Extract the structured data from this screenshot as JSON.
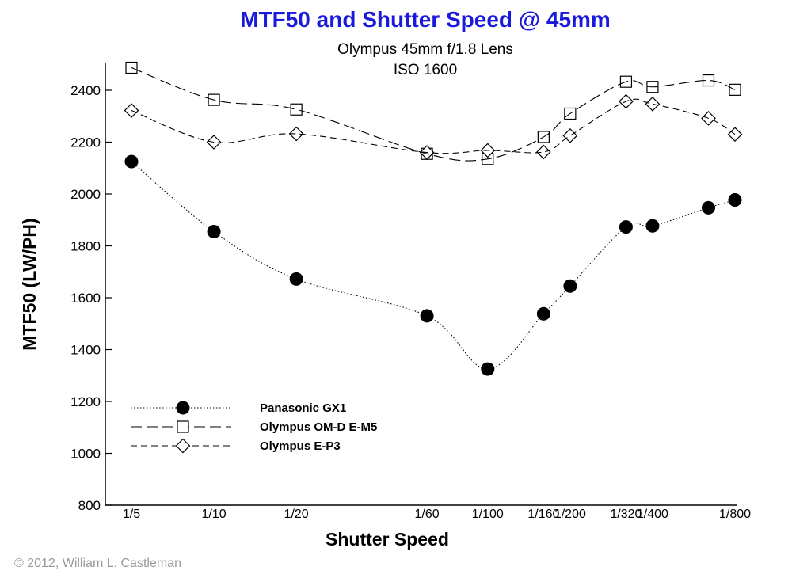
{
  "chart_data": {
    "type": "line",
    "title": "MTF50 and Shutter Speed @ 45mm",
    "subtitle_lines": [
      "Olympus 45mm f/1.8 Lens",
      "ISO 1600"
    ],
    "xlabel": "Shutter Speed",
    "ylabel": "MTF50  (LW/PH)",
    "ylim": [
      800,
      2500
    ],
    "yticks": [
      800,
      1000,
      1200,
      1400,
      1600,
      1800,
      2000,
      2200,
      2400
    ],
    "x_scale": "log of 1/seconds",
    "xticks": [
      {
        "label": "1/5",
        "value": 5
      },
      {
        "label": "1/10",
        "value": 10
      },
      {
        "label": "1/20",
        "value": 20
      },
      {
        "label": "1/60",
        "value": 60
      },
      {
        "label": "1/100",
        "value": 100
      },
      {
        "label": "1/160",
        "value": 160
      },
      {
        "label": "1/200",
        "value": 200
      },
      {
        "label": "1/320",
        "value": 320
      },
      {
        "label": "1/400",
        "value": 400
      },
      {
        "label": "1/800",
        "value": 800
      }
    ],
    "grid": false,
    "legend_position": "bottom-left",
    "series": [
      {
        "name": "Panasonic GX1",
        "line_style": "dotted",
        "marker": "filled-circle",
        "x": [
          5,
          10,
          20,
          60,
          100,
          160,
          200,
          320,
          400,
          640,
          800
        ],
        "y": [
          2125,
          1855,
          1672,
          1530,
          1325,
          1538,
          1645,
          1873,
          1877,
          1947,
          1977
        ]
      },
      {
        "name": "Olympus OM-D E-M5",
        "line_style": "long-dash",
        "marker": "open-square",
        "x": [
          5,
          10,
          20,
          60,
          100,
          160,
          200,
          320,
          400,
          640,
          800
        ],
        "y": [
          2487,
          2363,
          2326,
          2155,
          2135,
          2220,
          2310,
          2433,
          2413,
          2438,
          2402
        ]
      },
      {
        "name": "Olympus E-P3",
        "line_style": "short-dash",
        "marker": "open-diamond",
        "x": [
          5,
          10,
          20,
          60,
          100,
          160,
          200,
          320,
          400,
          640,
          800
        ],
        "y": [
          2322,
          2200,
          2232,
          2160,
          2168,
          2162,
          2225,
          2357,
          2347,
          2292,
          2230
        ]
      }
    ]
  },
  "copyright": "© 2012, William L. Castleman",
  "colors": {
    "title": "#1a1adb",
    "ink": "#000000",
    "copyright": "#9a9a9a"
  }
}
